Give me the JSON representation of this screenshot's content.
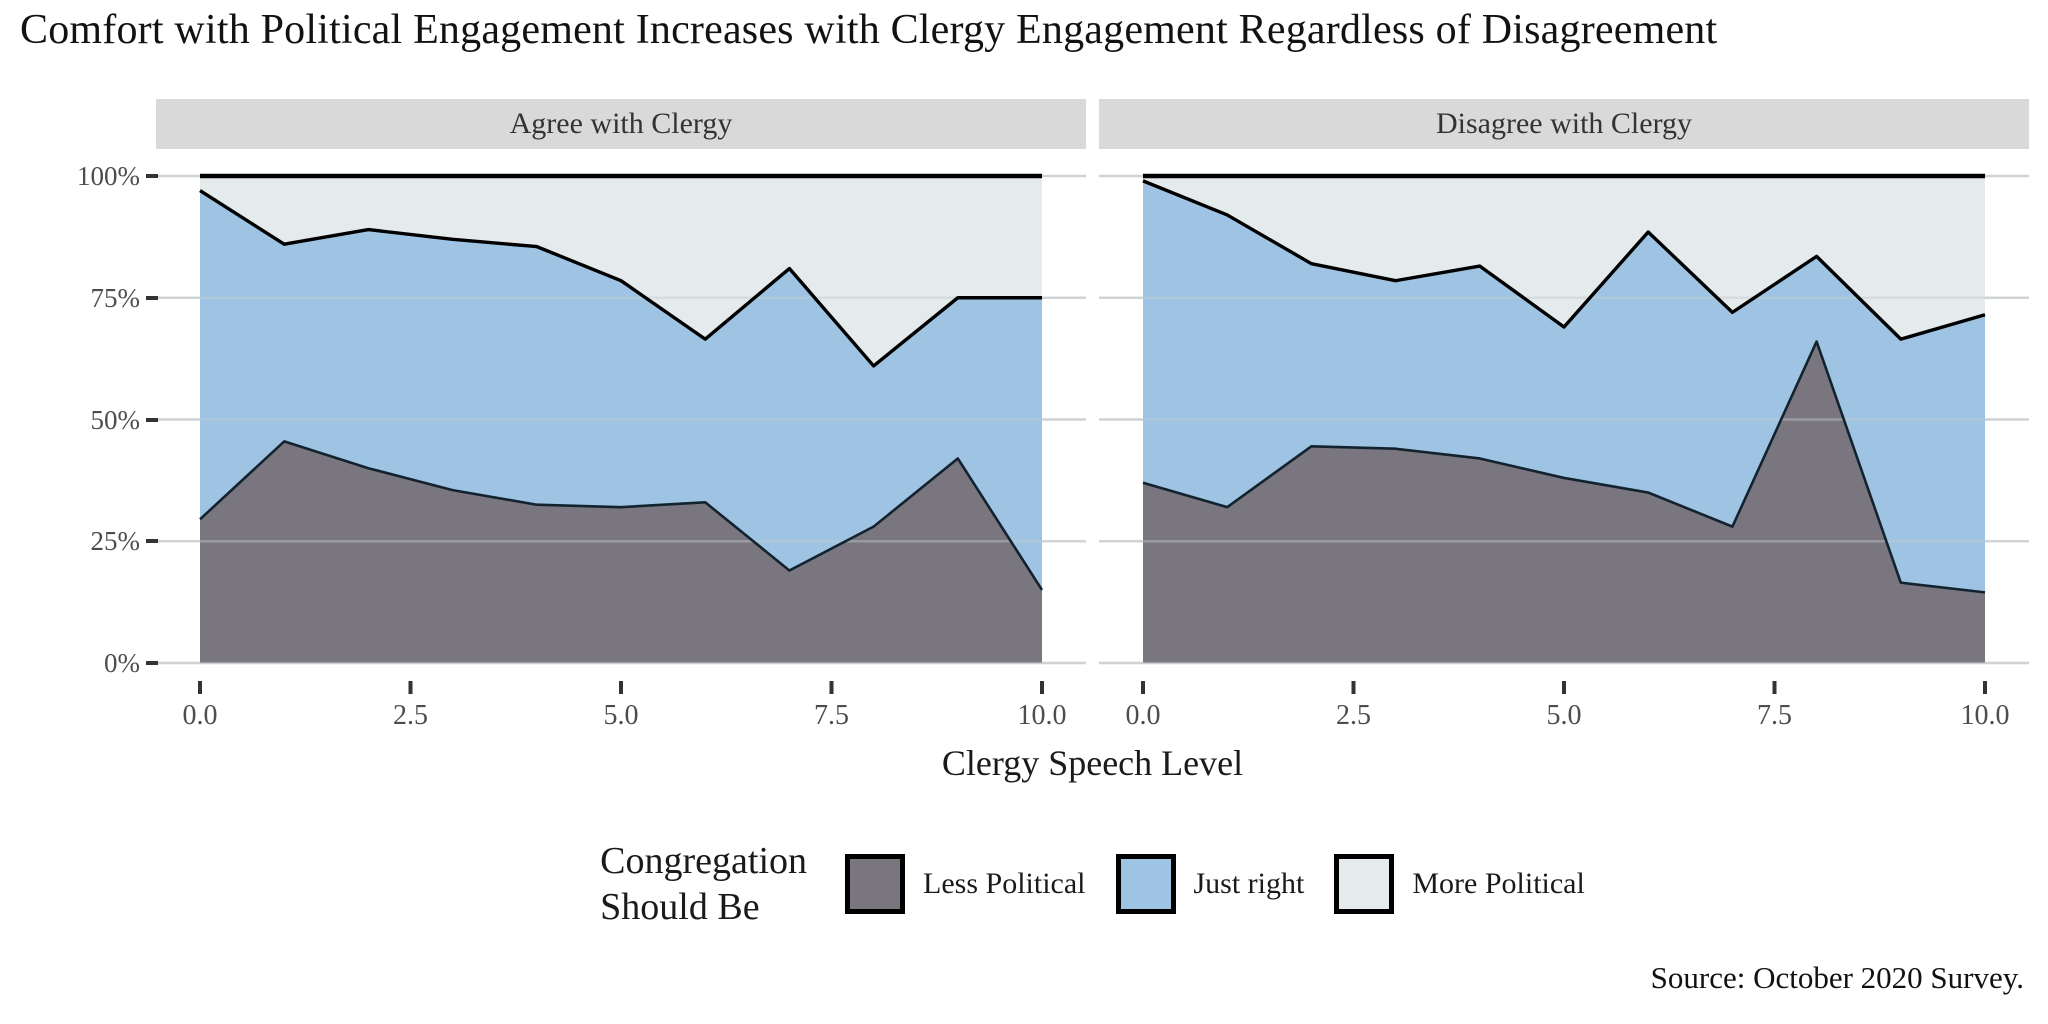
{
  "title": "Comfort with Political Engagement Increases with Clergy Engagement Regardless of Disagreement",
  "source": "Source: October 2020 Survey.",
  "axes": {
    "x_title": "Clergy Speech Level",
    "x_ticks": {
      "labels": [
        "0.0",
        "2.5",
        "5.0",
        "7.5",
        "10.0"
      ],
      "values": [
        0,
        2.5,
        5,
        7.5,
        10
      ]
    },
    "y_ticks": {
      "labels": [
        "100%",
        "75%",
        "50%",
        "25%",
        "0%"
      ],
      "values": [
        100,
        75,
        50,
        25,
        0
      ]
    },
    "x_range": [
      0,
      10
    ],
    "y_range_pct": [
      0,
      100
    ],
    "grid": "horizontal-only"
  },
  "legend": {
    "title_line1": "Congregation",
    "title_line2": "Should Be",
    "position": "bottom-center",
    "items": [
      {
        "label": "Less Political",
        "color": "#7A7680"
      },
      {
        "label": "Just right",
        "color": "#9FC4E3"
      },
      {
        "label": "More Political",
        "color": "#E5EAED"
      }
    ]
  },
  "colors": {
    "strip_background": "#D9D9D9",
    "panel_background": "#FFFFFF",
    "gridline": "#D9D9D9",
    "boundary_line": "#000000",
    "lower_boundary_line": "#12232F",
    "axis_text": "#4D4D4D",
    "tick_mark": "#333333"
  },
  "chart_data": {
    "type": "area",
    "stacked": true,
    "stack_unit": "percent",
    "title": "Comfort with Political Engagement Increases with Clergy Engagement Regardless of Disagreement",
    "xlabel": "Clergy Speech Level",
    "ylabel": "",
    "x": [
      0,
      1,
      2,
      3,
      4,
      5,
      6,
      7,
      8,
      9,
      10
    ],
    "ylim_pct": [
      0,
      100
    ],
    "facets": [
      {
        "label": "Agree with Clergy",
        "series": [
          {
            "name": "Less Political",
            "values": [
              29.5,
              45.5,
              40,
              35.5,
              32.5,
              32,
              33,
              19,
              28,
              42,
              15
            ]
          },
          {
            "name": "Just right",
            "values": [
              67.5,
              40.5,
              49,
              51.5,
              53,
              46.5,
              33.5,
              62,
              33,
              33,
              60
            ]
          },
          {
            "name": "More Political",
            "values": [
              3,
              14,
              11,
              13,
              14.5,
              21.5,
              33.5,
              19,
              39,
              25,
              25
            ]
          }
        ]
      },
      {
        "label": "Disagree with Clergy",
        "series": [
          {
            "name": "Less Political",
            "values": [
              37,
              32,
              44.5,
              44,
              42,
              38,
              35,
              28,
              66,
              16.5,
              14.5
            ]
          },
          {
            "name": "Just right",
            "values": [
              62,
              60,
              37.5,
              34.5,
              39.5,
              31,
              53.5,
              44,
              17.5,
              50,
              57
            ]
          },
          {
            "name": "More Political",
            "values": [
              1,
              8,
              18,
              21.5,
              18.5,
              31,
              11.5,
              28,
              16.5,
              33.5,
              28.5
            ]
          }
        ]
      }
    ]
  }
}
